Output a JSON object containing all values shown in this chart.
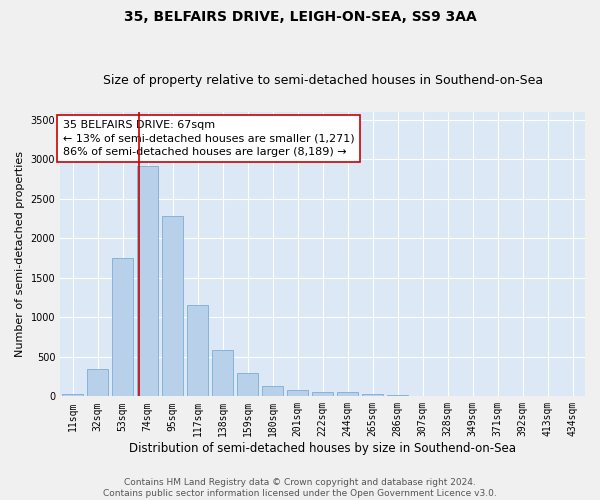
{
  "title": "35, BELFAIRS DRIVE, LEIGH-ON-SEA, SS9 3AA",
  "subtitle": "Size of property relative to semi-detached houses in Southend-on-Sea",
  "xlabel": "Distribution of semi-detached houses by size in Southend-on-Sea",
  "ylabel": "Number of semi-detached properties",
  "bar_color": "#b8d0ea",
  "bar_edge_color": "#7aaed4",
  "categories": [
    "11sqm",
    "32sqm",
    "53sqm",
    "74sqm",
    "95sqm",
    "117sqm",
    "138sqm",
    "159sqm",
    "180sqm",
    "201sqm",
    "222sqm",
    "244sqm",
    "265sqm",
    "286sqm",
    "307sqm",
    "328sqm",
    "349sqm",
    "371sqm",
    "392sqm",
    "413sqm",
    "434sqm"
  ],
  "values": [
    30,
    340,
    1750,
    2920,
    2280,
    1160,
    590,
    300,
    130,
    75,
    60,
    55,
    30,
    15,
    5,
    0,
    0,
    0,
    0,
    0,
    0
  ],
  "ylim": [
    0,
    3600
  ],
  "yticks": [
    0,
    500,
    1000,
    1500,
    2000,
    2500,
    3000,
    3500
  ],
  "annotation_text": "35 BELFAIRS DRIVE: 67sqm\n← 13% of semi-detached houses are smaller (1,271)\n86% of semi-detached houses are larger (8,189) →",
  "vline_color": "#cc0000",
  "vline_pos": 2.64,
  "annotation_box_color": "#ffffff",
  "annotation_box_edge": "#cc0000",
  "footer_line1": "Contains HM Land Registry data © Crown copyright and database right 2024.",
  "footer_line2": "Contains public sector information licensed under the Open Government Licence v3.0.",
  "bg_color": "#dce8f5",
  "grid_color": "#ffffff",
  "fig_bg": "#f0f0f0",
  "title_fontsize": 10,
  "subtitle_fontsize": 9,
  "xlabel_fontsize": 8.5,
  "ylabel_fontsize": 8,
  "tick_fontsize": 7,
  "annotation_fontsize": 8,
  "footer_fontsize": 6.5
}
